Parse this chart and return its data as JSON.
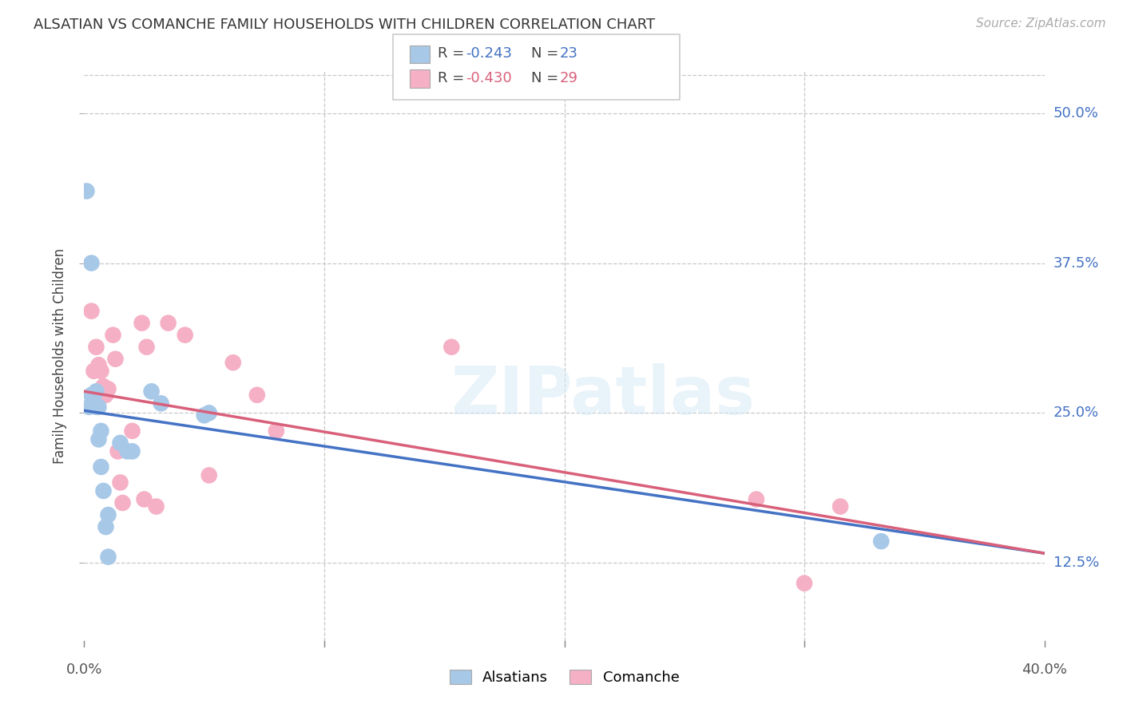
{
  "title": "ALSATIAN VS COMANCHE FAMILY HOUSEHOLDS WITH CHILDREN CORRELATION CHART",
  "source": "Source: ZipAtlas.com",
  "ylabel": "Family Households with Children",
  "y_ticks": [
    0.125,
    0.25,
    0.375,
    0.5
  ],
  "y_tick_labels": [
    "12.5%",
    "25.0%",
    "37.5%",
    "50.0%"
  ],
  "alsatian_R": -0.243,
  "alsatian_N": 23,
  "comanche_R": -0.43,
  "comanche_N": 29,
  "alsatian_color": "#a8c8e8",
  "comanche_color": "#f5b0c5",
  "alsatian_line_color": "#4472c4",
  "comanche_line_color": "#d9607a",
  "tick_label_color": "#4472c4",
  "xlim": [
    0.0,
    0.4
  ],
  "ylim": [
    0.06,
    0.535
  ],
  "alsatian_x": [
    0.001,
    0.002,
    0.003,
    0.004,
    0.005,
    0.005,
    0.006,
    0.007,
    0.007,
    0.008,
    0.009,
    0.01,
    0.01,
    0.015,
    0.018,
    0.02,
    0.028,
    0.032,
    0.05,
    0.052,
    0.332,
    0.003,
    0.006
  ],
  "alsatian_y": [
    0.435,
    0.255,
    0.265,
    0.265,
    0.268,
    0.255,
    0.228,
    0.235,
    0.205,
    0.185,
    0.155,
    0.165,
    0.13,
    0.225,
    0.218,
    0.218,
    0.268,
    0.258,
    0.248,
    0.25,
    0.143,
    0.375,
    0.255
  ],
  "comanche_x": [
    0.003,
    0.004,
    0.005,
    0.006,
    0.007,
    0.008,
    0.009,
    0.01,
    0.012,
    0.013,
    0.014,
    0.015,
    0.016,
    0.02,
    0.024,
    0.026,
    0.03,
    0.035,
    0.042,
    0.052,
    0.062,
    0.072,
    0.08,
    0.153,
    0.28,
    0.3,
    0.315,
    0.008,
    0.025
  ],
  "comanche_y": [
    0.335,
    0.285,
    0.305,
    0.29,
    0.285,
    0.272,
    0.265,
    0.27,
    0.315,
    0.295,
    0.218,
    0.192,
    0.175,
    0.235,
    0.325,
    0.305,
    0.172,
    0.325,
    0.315,
    0.198,
    0.292,
    0.265,
    0.235,
    0.305,
    0.178,
    0.108,
    0.172,
    0.272,
    0.178
  ],
  "alsatian_trend": [
    0.252,
    0.133
  ],
  "comanche_trend": [
    0.268,
    0.133
  ],
  "watermark": "ZIPatlas",
  "background_color": "#ffffff",
  "grid_color": "#c8c8c8"
}
